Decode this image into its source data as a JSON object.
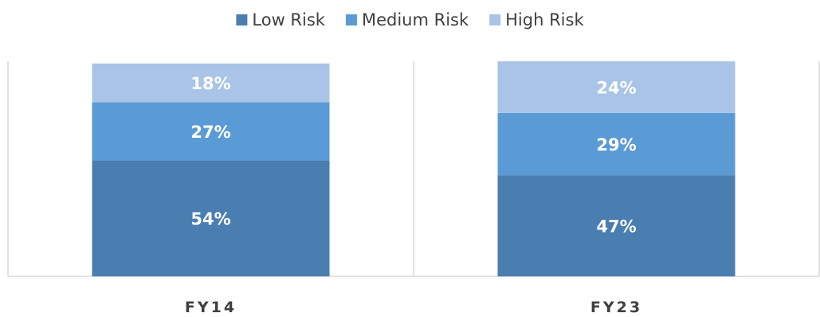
{
  "chart_data": {
    "type": "bar",
    "stacked": true,
    "categories": [
      "FY14",
      "FY23"
    ],
    "series": [
      {
        "name": "Low Risk",
        "color": "#4a7eb0",
        "values": [
          54,
          47
        ],
        "labels": [
          "54%",
          "47%"
        ]
      },
      {
        "name": "Medium Risk",
        "color": "#5b9bd5",
        "values": [
          27,
          29
        ],
        "labels": [
          "27%",
          "29%"
        ]
      },
      {
        "name": "High Risk",
        "color": "#a9c4e6",
        "values": [
          18,
          24
        ],
        "labels": [
          "18%",
          "24%"
        ]
      }
    ],
    "ylim": [
      0,
      100
    ],
    "grid": false,
    "legend_position": "top-center",
    "axis_color": "#d9d9d9"
  }
}
